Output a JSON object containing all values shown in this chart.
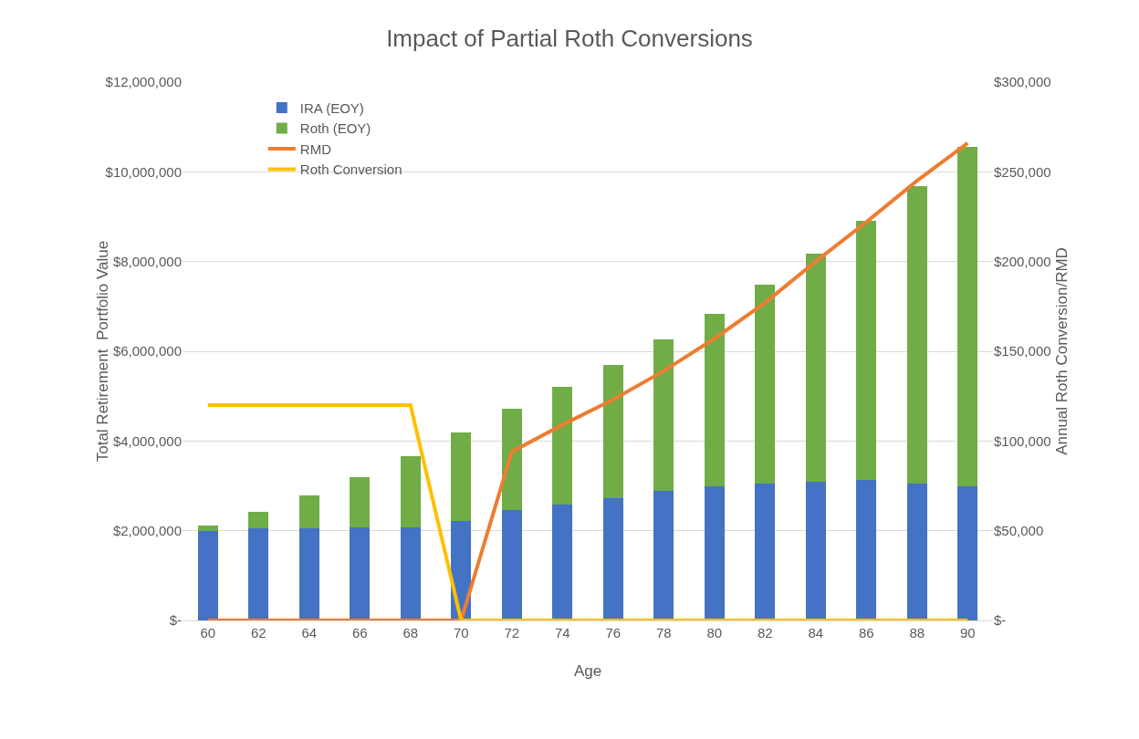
{
  "chart_data": {
    "type": "bar",
    "title": "Impact of Partial Roth Conversions",
    "xlabel": "Age",
    "ylabel": "Total Retirement  Portfolio Value",
    "y2label": "Annual Roth Conversion/RMD",
    "categories": [
      "60",
      "62",
      "64",
      "66",
      "68",
      "70",
      "72",
      "74",
      "76",
      "78",
      "80",
      "82",
      "84",
      "86",
      "88",
      "90"
    ],
    "stacked": true,
    "series": [
      {
        "name": "IRA (EOY)",
        "color": "#4472c4",
        "values": [
          2000000,
          2050000,
          2050000,
          2070000,
          2070000,
          2210000,
          2460000,
          2590000,
          2730000,
          2880000,
          2990000,
          3050000,
          3090000,
          3130000,
          3050000,
          2990000
        ]
      },
      {
        "name": "Roth (EOY)",
        "color": "#70ad47",
        "values": [
          110000,
          370000,
          730000,
          1120000,
          1600000,
          1990000,
          2260000,
          2610000,
          2970000,
          3380000,
          3840000,
          4440000,
          5090000,
          5780000,
          6640000,
          7570000
        ]
      },
      {
        "name": "RMD",
        "type": "line",
        "axis": "y2",
        "color": "#ed7d31",
        "values": [
          0,
          0,
          0,
          0,
          0,
          0,
          94000,
          109000,
          123000,
          139000,
          157000,
          177000,
          200000,
          222000,
          245000,
          266000
        ]
      },
      {
        "name": "Roth Conversion",
        "type": "line",
        "axis": "y2",
        "color": "#ffc000",
        "values": [
          120000,
          120000,
          120000,
          120000,
          120000,
          0,
          0,
          0,
          0,
          0,
          0,
          0,
          0,
          0,
          0,
          0
        ]
      }
    ],
    "ylim": [
      0,
      12000000
    ],
    "yticks": [
      {
        "value": 0,
        "label": "$-"
      },
      {
        "value": 2000000,
        "label": "$2,000,000"
      },
      {
        "value": 4000000,
        "label": "$4,000,000"
      },
      {
        "value": 6000000,
        "label": "$6,000,000"
      },
      {
        "value": 8000000,
        "label": "$8,000,000"
      },
      {
        "value": 10000000,
        "label": "$10,000,000"
      },
      {
        "value": 12000000,
        "label": "$12,000,000"
      }
    ],
    "y2lim": [
      0,
      300000
    ],
    "y2ticks": [
      {
        "value": 0,
        "label": "$-"
      },
      {
        "value": 50000,
        "label": "$50,000"
      },
      {
        "value": 100000,
        "label": "$100,000"
      },
      {
        "value": 150000,
        "label": "$150,000"
      },
      {
        "value": 200000,
        "label": "$200,000"
      },
      {
        "value": 250000,
        "label": "$250,000"
      },
      {
        "value": 300000,
        "label": "$300,000"
      }
    ],
    "grid": "y",
    "legend": "top left",
    "marker": "none",
    "line_style": "solid"
  }
}
